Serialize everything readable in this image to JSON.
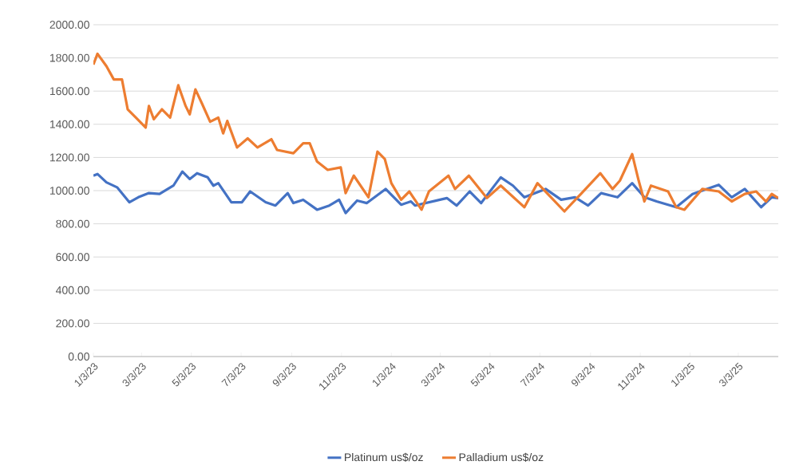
{
  "chart_data": {
    "type": "line",
    "xlim": [
      "2023-01-03",
      "2025-04-21"
    ],
    "xticks": [
      {
        "value": "2023-01-03",
        "label": "1/3/23"
      },
      {
        "value": "2023-03-03",
        "label": "3/3/23"
      },
      {
        "value": "2023-05-03",
        "label": "5/3/23"
      },
      {
        "value": "2023-07-03",
        "label": "7/3/23"
      },
      {
        "value": "2023-09-03",
        "label": "9/3/23"
      },
      {
        "value": "2023-11-03",
        "label": "11/3/23"
      },
      {
        "value": "2024-01-03",
        "label": "1/3/24"
      },
      {
        "value": "2024-03-03",
        "label": "3/3/24"
      },
      {
        "value": "2024-05-03",
        "label": "5/3/24"
      },
      {
        "value": "2024-07-03",
        "label": "7/3/24"
      },
      {
        "value": "2024-09-03",
        "label": "9/3/24"
      },
      {
        "value": "2024-11-03",
        "label": "11/3/24"
      },
      {
        "value": "2025-01-03",
        "label": "1/3/25"
      },
      {
        "value": "2025-03-03",
        "label": "3/3/25"
      }
    ],
    "ylim": [
      0,
      2000
    ],
    "yticks": [
      {
        "value": 0,
        "label": "0.00"
      },
      {
        "value": 200,
        "label": "200.00"
      },
      {
        "value": 400,
        "label": "400.00"
      },
      {
        "value": 600,
        "label": "600.00"
      },
      {
        "value": 800,
        "label": "800.00"
      },
      {
        "value": 1000,
        "label": "1000.00"
      },
      {
        "value": 1200,
        "label": "1200.00"
      },
      {
        "value": 1400,
        "label": "1400.00"
      },
      {
        "value": 1600,
        "label": "1600.00"
      },
      {
        "value": 1800,
        "label": "1800.00"
      },
      {
        "value": 2000,
        "label": "2000.00"
      }
    ],
    "grid": "y",
    "legend": "bottom",
    "marker": "none",
    "line_style": "solid",
    "series": [
      {
        "name": "Platinum us$/oz",
        "color": "#4472c4",
        "x": [
          "2023-01-03",
          "2023-01-08",
          "2023-01-19",
          "2023-02-01",
          "2023-02-16",
          "2023-02-27",
          "2023-03-12",
          "2023-03-25",
          "2023-04-11",
          "2023-04-22",
          "2023-05-01",
          "2023-05-10",
          "2023-05-23",
          "2023-05-30",
          "2023-06-05",
          "2023-06-21",
          "2023-07-04",
          "2023-07-14",
          "2023-08-02",
          "2023-08-14",
          "2023-08-29",
          "2023-09-05",
          "2023-09-17",
          "2023-10-04",
          "2023-10-19",
          "2023-10-31",
          "2023-11-08",
          "2023-11-22",
          "2023-12-04",
          "2023-12-27",
          "2024-01-15",
          "2024-01-27",
          "2024-02-01",
          "2024-03-11",
          "2024-03-23",
          "2024-04-08",
          "2024-04-22",
          "2024-05-16",
          "2024-05-31",
          "2024-06-14",
          "2024-07-10",
          "2024-07-29",
          "2024-08-15",
          "2024-08-31",
          "2024-09-16",
          "2024-10-06",
          "2024-10-24",
          "2024-11-08",
          "2024-11-23",
          "2024-12-17",
          "2025-01-06",
          "2025-02-07",
          "2025-02-23",
          "2025-03-11",
          "2025-03-31",
          "2025-04-13",
          "2025-04-21"
        ],
        "values": [
          1090,
          1100,
          1050,
          1020,
          930,
          960,
          985,
          980,
          1030,
          1115,
          1070,
          1105,
          1080,
          1030,
          1045,
          930,
          930,
          995,
          930,
          910,
          985,
          925,
          945,
          885,
          910,
          945,
          865,
          940,
          925,
          1010,
          915,
          935,
          910,
          955,
          910,
          995,
          925,
          1080,
          1030,
          960,
          1010,
          945,
          960,
          910,
          985,
          960,
          1045,
          960,
          935,
          900,
          980,
          1035,
          960,
          1010,
          900,
          960,
          955
        ]
      },
      {
        "name": "Palladium us$/oz",
        "color": "#ed7d31",
        "x": [
          "2023-01-03",
          "2023-01-08",
          "2023-01-19",
          "2023-01-28",
          "2023-02-07",
          "2023-02-14",
          "2023-02-24",
          "2023-03-08",
          "2023-03-12",
          "2023-03-18",
          "2023-03-28",
          "2023-04-07",
          "2023-04-17",
          "2023-04-26",
          "2023-05-01",
          "2023-05-08",
          "2023-05-16",
          "2023-05-26",
          "2023-06-05",
          "2023-06-11",
          "2023-06-16",
          "2023-06-28",
          "2023-07-11",
          "2023-07-23",
          "2023-08-09",
          "2023-08-16",
          "2023-09-05",
          "2023-09-17",
          "2023-09-25",
          "2023-10-04",
          "2023-10-17",
          "2023-11-02",
          "2023-11-08",
          "2023-11-18",
          "2023-12-06",
          "2023-12-17",
          "2023-12-26",
          "2024-01-03",
          "2024-01-15",
          "2024-01-25",
          "2024-02-09",
          "2024-02-18",
          "2024-03-13",
          "2024-03-21",
          "2024-04-07",
          "2024-04-29",
          "2024-05-16",
          "2024-06-14",
          "2024-06-30",
          "2024-08-02",
          "2024-08-25",
          "2024-09-15",
          "2024-09-30",
          "2024-10-09",
          "2024-10-24",
          "2024-11-01",
          "2024-11-08",
          "2024-11-16",
          "2024-12-07",
          "2024-12-17",
          "2024-12-27",
          "2025-01-18",
          "2025-02-07",
          "2025-02-23",
          "2025-03-11",
          "2025-03-25",
          "2025-04-06",
          "2025-04-13",
          "2025-04-21"
        ],
        "values": [
          1760,
          1825,
          1750,
          1670,
          1670,
          1490,
          1440,
          1380,
          1510,
          1430,
          1490,
          1440,
          1635,
          1510,
          1460,
          1610,
          1525,
          1415,
          1440,
          1345,
          1420,
          1260,
          1315,
          1260,
          1310,
          1245,
          1225,
          1285,
          1285,
          1175,
          1125,
          1140,
          985,
          1090,
          960,
          1235,
          1190,
          1045,
          945,
          995,
          885,
          995,
          1090,
          1010,
          1090,
          955,
          1030,
          900,
          1045,
          875,
          995,
          1105,
          1010,
          1060,
          1220,
          1060,
          935,
          1030,
          995,
          900,
          885,
          1010,
          995,
          935,
          980,
          995,
          935,
          980,
          955
        ]
      }
    ]
  }
}
